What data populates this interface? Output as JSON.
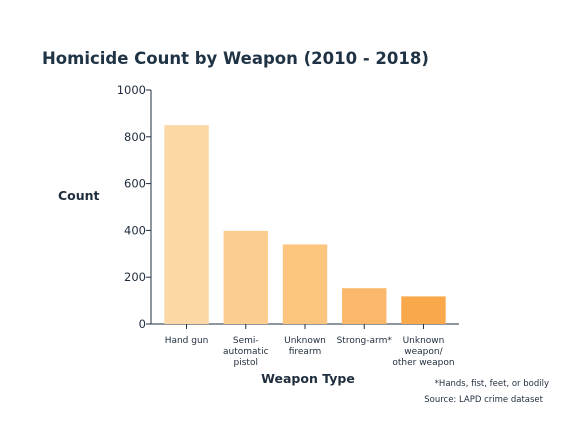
{
  "chart_data": {
    "type": "bar",
    "title": "Homicide Count by Weapon (2010 - 2018)",
    "xlabel": "Weapon Type",
    "ylabel": "Count",
    "categories": [
      "Hand gun",
      "Semi-\nautomatic\npistol",
      "Unknown\nfirearm",
      "Strong-arm*",
      "Unknown\nweapon/\nother weapon"
    ],
    "values": [
      850,
      398,
      340,
      153,
      118
    ],
    "ylim": [
      0,
      1000
    ],
    "yticks": [
      0,
      200,
      400,
      600,
      800,
      1000
    ],
    "grid": false,
    "colors": [
      "#fbd8a5",
      "#fbcd8f",
      "#fbc57e",
      "#fbb86b",
      "#f9a94b"
    ]
  },
  "footnotes": {
    "note": "*Hands, fist, feet, or bodily",
    "source": "Source: LAPD crime dataset"
  }
}
